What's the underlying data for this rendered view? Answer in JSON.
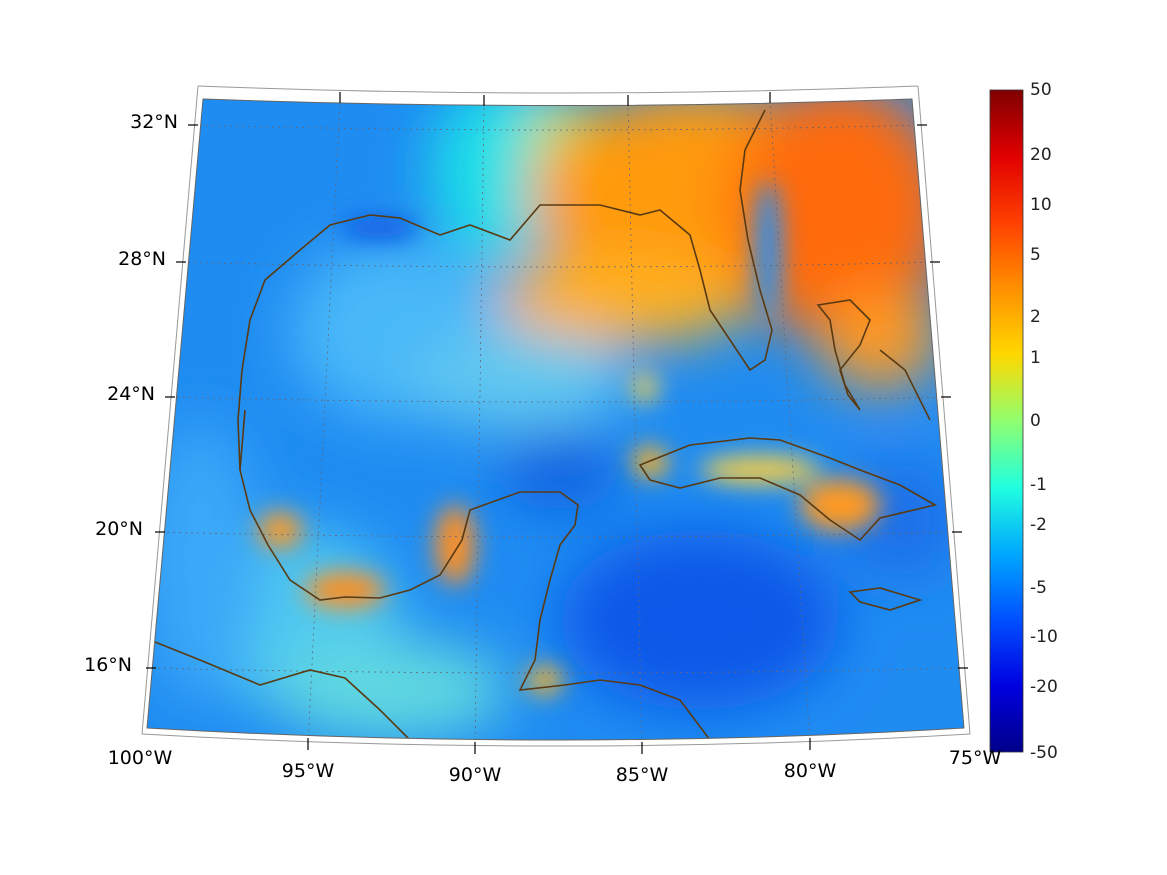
{
  "map": {
    "latitude_labels": [
      "32°N",
      "28°N",
      "24°N",
      "20°N",
      "16°N"
    ],
    "longitude_labels": [
      "100°W",
      "95°W",
      "90°W",
      "85°W",
      "80°W",
      "75°W"
    ],
    "coastline_color": "#5a3a12",
    "grid": true
  },
  "colorbar": {
    "colormap": "jet",
    "tick_labels": [
      "50",
      "20",
      "10",
      "5",
      "2",
      "1",
      "0",
      "-1",
      "-2",
      "-5",
      "-10",
      "-20",
      "-50"
    ],
    "colors": {
      "max": "#800000",
      "high": "#ff2000",
      "warm": "#ff8000",
      "mid": "#ffff00",
      "zero": "#80ff80",
      "cool": "#00ffff",
      "low": "#0080ff",
      "min": "#00008a"
    }
  }
}
